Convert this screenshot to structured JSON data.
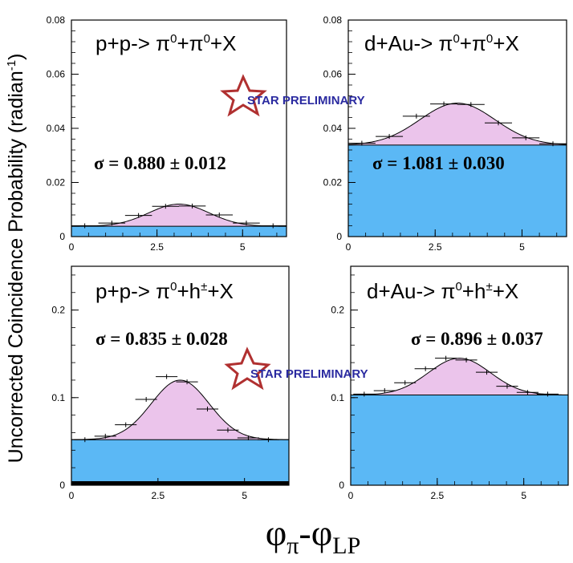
{
  "figure": {
    "ylabel_prefix": "Uncorrected Coincidence Probability (radian",
    "ylabel_sup": "-1",
    "ylabel_suffix": ")",
    "xlabel_phi1": "φ",
    "xlabel_sub1": "π",
    "xlabel_dash": "-",
    "xlabel_phi2": "φ",
    "xlabel_sub2": "LP",
    "watermark": "STAR PRELIMINARY",
    "colors": {
      "background_fill": "#5bb8f5",
      "peak_fill": "#ebc4eb",
      "star_outline": "#b03030",
      "watermark_text": "#2a2aa0"
    }
  },
  "chart_data": [
    {
      "type": "line",
      "panel": "top-left",
      "title": {
        "a": "p+p-> π",
        "b": "0",
        "c": "+π",
        "d": "0",
        "e": "+X"
      },
      "sigma_label": "σ = 0.880 ± 0.012",
      "xlim": [
        0,
        6.283
      ],
      "ylim": [
        0,
        0.08
      ],
      "x_ticks": [
        "0",
        "2.5",
        "5"
      ],
      "x_tick_values": [
        0,
        2.5,
        5
      ],
      "y_ticks": [
        "0",
        "0.02",
        "0.04",
        "0.06",
        "0.08"
      ],
      "y_tick_values": [
        0,
        0.02,
        0.04,
        0.06,
        0.08
      ],
      "pedestal": 0.0038,
      "fit": {
        "amplitude": 0.0082,
        "mean": 3.1416,
        "sigma": 0.88
      },
      "points": {
        "x": [
          0.39,
          1.18,
          1.96,
          2.75,
          3.53,
          4.32,
          5.11,
          5.89
        ],
        "y": [
          0.004,
          0.005,
          0.0078,
          0.0112,
          0.0113,
          0.008,
          0.005,
          0.004
        ]
      }
    },
    {
      "type": "line",
      "panel": "top-right",
      "title": {
        "a": "d+Au-> π",
        "b": "0",
        "c": "+π",
        "d": "0",
        "e": "+X"
      },
      "sigma_label": "σ = 1.081 ± 0.030",
      "xlim": [
        0,
        6.283
      ],
      "ylim": [
        0,
        0.08
      ],
      "x_ticks": [
        "0",
        "2.5",
        "5"
      ],
      "x_tick_values": [
        0,
        2.5,
        5
      ],
      "y_ticks": [
        "0",
        "0.02",
        "0.04",
        "0.06",
        "0.08"
      ],
      "y_tick_values": [
        0,
        0.02,
        0.04,
        0.06,
        0.08
      ],
      "pedestal": 0.0338,
      "fit": {
        "amplitude": 0.0155,
        "mean": 3.1416,
        "sigma": 1.081
      },
      "points": {
        "x": [
          0.39,
          1.18,
          1.96,
          2.75,
          3.53,
          4.32,
          5.11,
          5.89
        ],
        "y": [
          0.0345,
          0.037,
          0.0445,
          0.049,
          0.0488,
          0.042,
          0.0365,
          0.0343
        ]
      }
    },
    {
      "type": "line",
      "panel": "bottom-left",
      "title": {
        "a": "p+p-> π",
        "b": "0",
        "c": "+h",
        "d": "±",
        "e": "+X"
      },
      "sigma_label": "σ = 0.835 ± 0.028",
      "xlim": [
        0,
        6.283
      ],
      "ylim": [
        0,
        0.25
      ],
      "x_ticks": [
        "0",
        "2.5",
        "5"
      ],
      "x_tick_values": [
        0,
        2.5,
        5
      ],
      "y_ticks": [
        "0",
        "0.1",
        "0.2"
      ],
      "y_tick_values": [
        0,
        0.1,
        0.2
      ],
      "pedestal": 0.052,
      "fit": {
        "amplitude": 0.068,
        "mean": 3.1416,
        "sigma": 0.835
      },
      "points": {
        "x": [
          0.39,
          0.98,
          1.57,
          2.16,
          2.75,
          3.34,
          3.93,
          4.52,
          5.11,
          5.69
        ],
        "y": [
          0.052,
          0.056,
          0.069,
          0.098,
          0.124,
          0.118,
          0.087,
          0.063,
          0.054,
          0.052
        ]
      }
    },
    {
      "type": "line",
      "panel": "bottom-right",
      "title": {
        "a": "d+Au-> π",
        "b": "0",
        "c": "+h",
        "d": "±",
        "e": "+X"
      },
      "sigma_label": "σ = 0.896 ± 0.037",
      "xlim": [
        0,
        6.283
      ],
      "ylim": [
        0,
        0.25
      ],
      "x_ticks": [
        "0",
        "2.5",
        "5"
      ],
      "x_tick_values": [
        0,
        2.5,
        5
      ],
      "y_ticks": [
        "0",
        "0.1",
        "0.2"
      ],
      "y_tick_values": [
        0,
        0.1,
        0.2
      ],
      "pedestal": 0.103,
      "fit": {
        "amplitude": 0.042,
        "mean": 3.1416,
        "sigma": 0.896
      },
      "points": {
        "x": [
          0.39,
          0.98,
          1.57,
          2.16,
          2.75,
          3.34,
          3.93,
          4.52,
          5.11,
          5.69
        ],
        "y": [
          0.104,
          0.108,
          0.117,
          0.133,
          0.145,
          0.143,
          0.129,
          0.113,
          0.106,
          0.104
        ]
      }
    }
  ]
}
